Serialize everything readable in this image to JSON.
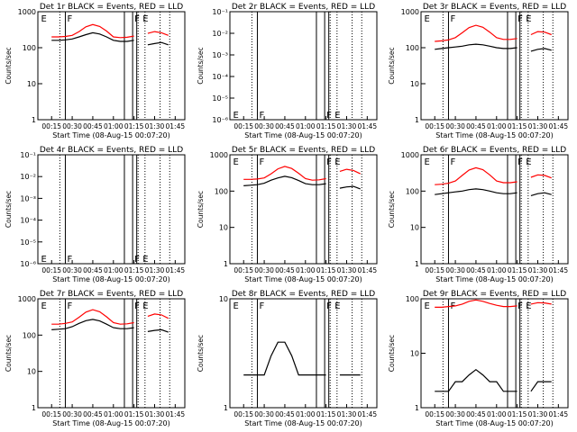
{
  "figure": {
    "x_title": "Start Time (08-Aug-15 00:07:20)",
    "y_title": "Counts/sec",
    "x_ticks": [
      "00:15",
      "00:30",
      "00:45",
      "01:00",
      "01:15",
      "01:30",
      "01:45"
    ],
    "tick_marks_F": "F",
    "tick_marks_E": "E",
    "colors": {
      "events": "#000000",
      "lld": "#ff0000",
      "axes": "#000000"
    }
  },
  "chart_data": [
    {
      "title": "Det 1r BLACK = Events, RED = LLD",
      "type": "line",
      "yscale": "log",
      "ylim": [
        1,
        1000
      ],
      "y_ticks": [
        "1",
        "10",
        "100",
        "1000"
      ],
      "x_minutes": [
        15,
        20,
        25,
        30,
        35,
        40,
        45,
        50,
        55,
        60,
        65,
        70,
        75,
        80,
        85,
        90,
        95,
        100,
        105
      ],
      "series": [
        {
          "name": "Events",
          "values": [
            160,
            160,
            165,
            175,
            200,
            230,
            260,
            240,
            200,
            160,
            150,
            150,
            160,
            null,
            120,
            130,
            140,
            120,
            null
          ]
        },
        {
          "name": "LLD",
          "values": [
            200,
            200,
            205,
            220,
            280,
            380,
            440,
            390,
            290,
            200,
            190,
            195,
            210,
            null,
            250,
            280,
            260,
            220,
            null
          ]
        }
      ]
    },
    {
      "title": "Det 2r BLACK = Events, RED = LLD",
      "type": "line",
      "yscale": "log",
      "ylim": [
        1e-06,
        0.1
      ],
      "y_ticks": [
        "10⁻⁶",
        "10⁻⁵",
        "10⁻⁴",
        "10⁻³",
        "10⁻²",
        "10⁻¹"
      ],
      "x_minutes": [],
      "series": []
    },
    {
      "title": "Det 3r BLACK = Events, RED = LLD",
      "type": "line",
      "yscale": "log",
      "ylim": [
        1,
        1000
      ],
      "y_ticks": [
        "1",
        "10",
        "100",
        "1000"
      ],
      "x_minutes": [
        15,
        20,
        25,
        30,
        35,
        40,
        45,
        50,
        55,
        60,
        65,
        70,
        75,
        80,
        85,
        90,
        95,
        100,
        105
      ],
      "series": [
        {
          "name": "Events",
          "values": [
            90,
            95,
            100,
            105,
            110,
            120,
            125,
            120,
            110,
            100,
            95,
            95,
            100,
            null,
            80,
            90,
            95,
            85,
            null
          ]
        },
        {
          "name": "LLD",
          "values": [
            150,
            155,
            165,
            190,
            260,
            360,
            420,
            370,
            270,
            190,
            170,
            170,
            180,
            null,
            230,
            280,
            270,
            230,
            null
          ]
        }
      ]
    },
    {
      "title": "Det 4r BLACK = Events, RED = LLD",
      "type": "line",
      "yscale": "log",
      "ylim": [
        1e-06,
        0.1
      ],
      "y_ticks": [
        "10⁻⁶",
        "10⁻⁵",
        "10⁻⁴",
        "10⁻³",
        "10⁻²",
        "10⁻¹"
      ],
      "x_minutes": [],
      "series": []
    },
    {
      "title": "Det 5r BLACK = Events, RED = LLD",
      "type": "line",
      "yscale": "log",
      "ylim": [
        1,
        1000
      ],
      "y_ticks": [
        "1",
        "10",
        "100",
        "1000"
      ],
      "x_minutes": [
        15,
        20,
        25,
        30,
        35,
        40,
        45,
        50,
        55,
        60,
        65,
        70,
        75,
        80,
        85,
        90,
        95,
        100,
        105
      ],
      "series": [
        {
          "name": "Events",
          "values": [
            140,
            145,
            150,
            165,
            200,
            230,
            255,
            235,
            195,
            160,
            150,
            150,
            160,
            null,
            120,
            130,
            135,
            115,
            null
          ]
        },
        {
          "name": "LLD",
          "values": [
            210,
            210,
            215,
            230,
            300,
            410,
            480,
            420,
            310,
            220,
            200,
            205,
            220,
            null,
            350,
            400,
            370,
            300,
            null
          ]
        }
      ]
    },
    {
      "title": "Det 6r BLACK = Events, RED = LLD",
      "type": "line",
      "yscale": "log",
      "ylim": [
        1,
        1000
      ],
      "y_ticks": [
        "1",
        "10",
        "100",
        "1000"
      ],
      "x_minutes": [
        15,
        20,
        25,
        30,
        35,
        40,
        45,
        50,
        55,
        60,
        65,
        70,
        75,
        80,
        85,
        90,
        95,
        100,
        105
      ],
      "series": [
        {
          "name": "Events",
          "values": [
            80,
            85,
            90,
            95,
            100,
            110,
            115,
            110,
            100,
            90,
            85,
            85,
            90,
            null,
            75,
            85,
            90,
            80,
            null
          ]
        },
        {
          "name": "LLD",
          "values": [
            150,
            155,
            165,
            190,
            270,
            380,
            440,
            390,
            280,
            190,
            170,
            170,
            180,
            null,
            240,
            280,
            270,
            230,
            null
          ]
        }
      ]
    },
    {
      "title": "Det 7r BLACK = Events, RED = LLD",
      "type": "line",
      "yscale": "log",
      "ylim": [
        1,
        1000
      ],
      "y_ticks": [
        "1",
        "10",
        "100",
        "1000"
      ],
      "x_minutes": [
        15,
        20,
        25,
        30,
        35,
        40,
        45,
        50,
        55,
        60,
        65,
        70,
        75,
        80,
        85,
        90,
        95,
        100,
        105
      ],
      "series": [
        {
          "name": "Events",
          "values": [
            140,
            145,
            150,
            170,
            210,
            250,
            270,
            245,
            200,
            160,
            150,
            150,
            160,
            null,
            125,
            135,
            140,
            120,
            null
          ]
        },
        {
          "name": "LLD",
          "values": [
            200,
            200,
            210,
            230,
            310,
            430,
            500,
            440,
            320,
            220,
            200,
            205,
            220,
            null,
            330,
            380,
            360,
            290,
            null
          ]
        }
      ]
    },
    {
      "title": "Det 8r BLACK = Events, RED = LLD",
      "type": "line",
      "yscale": "log",
      "ylim": [
        1,
        10
      ],
      "y_ticks": [
        "1",
        "10"
      ],
      "x_minutes": [
        15,
        20,
        25,
        30,
        35,
        40,
        45,
        50,
        55,
        60,
        65,
        70,
        75,
        80,
        85,
        90,
        95,
        100,
        105
      ],
      "series": [
        {
          "name": "Events",
          "values": [
            2,
            2,
            2,
            2,
            3,
            4,
            4,
            3,
            2,
            2,
            2,
            2,
            2,
            null,
            2,
            2,
            2,
            2,
            null
          ]
        }
      ]
    },
    {
      "title": "Det 9r BLACK = Events, RED = LLD",
      "type": "line",
      "yscale": "log",
      "ylim": [
        1,
        100
      ],
      "y_ticks": [
        "1",
        "10",
        "100"
      ],
      "x_minutes": [
        15,
        20,
        25,
        30,
        35,
        40,
        45,
        50,
        55,
        60,
        65,
        70,
        75,
        80,
        85,
        90,
        95,
        100,
        105
      ],
      "series": [
        {
          "name": "Events",
          "values": [
            2,
            2,
            2,
            3,
            3,
            4,
            5,
            4,
            3,
            3,
            2,
            2,
            2,
            null,
            2,
            3,
            3,
            3,
            null
          ]
        },
        {
          "name": "LLD",
          "values": [
            70,
            70,
            72,
            74,
            80,
            90,
            95,
            90,
            82,
            76,
            72,
            72,
            74,
            null,
            80,
            85,
            84,
            80,
            null
          ]
        }
      ]
    }
  ]
}
